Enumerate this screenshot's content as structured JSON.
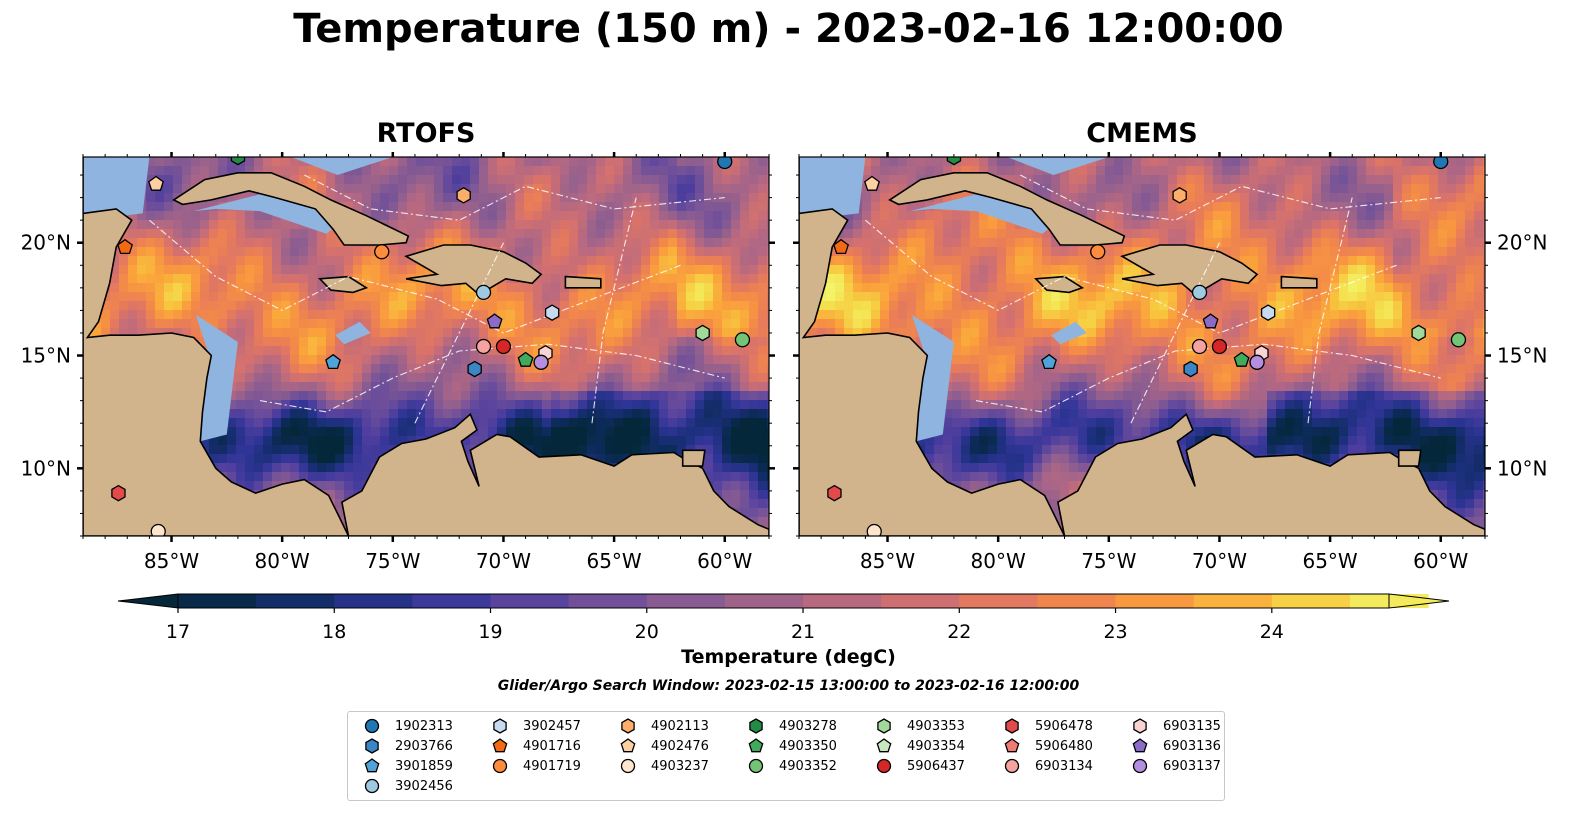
{
  "title": "Temperature (150 m) - 2023-02-16 12:00:00",
  "panels": [
    {
      "title": "RTOFS"
    },
    {
      "title": "CMEMS"
    }
  ],
  "axes": {
    "lon_ticks": [
      "85°W",
      "80°W",
      "75°W",
      "70°W",
      "65°W",
      "60°W"
    ],
    "lon_values": [
      -85,
      -80,
      -75,
      -70,
      -65,
      -60
    ],
    "lat_ticks": [
      "10°N",
      "15°N",
      "20°N"
    ],
    "lat_values": [
      10,
      15,
      20
    ],
    "lon_range": [
      -89,
      -58
    ],
    "lat_range": [
      7,
      23.8
    ]
  },
  "colorbar": {
    "label": "Temperature (degC)",
    "min": 17,
    "max": 24.75,
    "step": 0.5,
    "ticks": [
      "17",
      "18",
      "19",
      "20",
      "21",
      "22",
      "23",
      "24"
    ],
    "tick_values": [
      17,
      18,
      19,
      20,
      21,
      22,
      23,
      24
    ],
    "extend": "both",
    "colormap": "thermal"
  },
  "search_window": "Glider/Argo Search Window: 2023-02-15 13:00:00 to 2023-02-16 12:00:00",
  "colors": {
    "land": "#d2b48c",
    "shallow_water": "#90b4e0",
    "deep_cold": "#04283a",
    "warm": "#f4f46a"
  },
  "legend": [
    {
      "id": "1902313",
      "marker": "circle",
      "color": "#1f77b4"
    },
    {
      "id": "2903766",
      "marker": "hexagon",
      "color": "#3d86c6"
    },
    {
      "id": "3901859",
      "marker": "pentagon",
      "color": "#4fa3d9"
    },
    {
      "id": "3902456",
      "marker": "circle",
      "color": "#9ecae1"
    },
    {
      "id": "3902457",
      "marker": "hexagon",
      "color": "#c6dbef"
    },
    {
      "id": "4901716",
      "marker": "pentagon",
      "color": "#f16913"
    },
    {
      "id": "4901719",
      "marker": "circle",
      "color": "#fd8d3c"
    },
    {
      "id": "4902113",
      "marker": "hexagon",
      "color": "#fdae6b"
    },
    {
      "id": "4902476",
      "marker": "pentagon",
      "color": "#fdd0a2"
    },
    {
      "id": "4903237",
      "marker": "circle",
      "color": "#fee6ce"
    },
    {
      "id": "4903278",
      "marker": "hexagon",
      "color": "#238b45"
    },
    {
      "id": "4903350",
      "marker": "pentagon",
      "color": "#41ab5d"
    },
    {
      "id": "4903352",
      "marker": "circle",
      "color": "#74c476"
    },
    {
      "id": "4903353",
      "marker": "hexagon",
      "color": "#a1d99b"
    },
    {
      "id": "4903354",
      "marker": "pentagon",
      "color": "#c7e9c0"
    },
    {
      "id": "5906437",
      "marker": "circle",
      "color": "#d62728"
    },
    {
      "id": "5906478",
      "marker": "hexagon",
      "color": "#e34a4a"
    },
    {
      "id": "5906480",
      "marker": "pentagon",
      "color": "#f07b72"
    },
    {
      "id": "6903134",
      "marker": "circle",
      "color": "#f4a3a0"
    },
    {
      "id": "6903135",
      "marker": "hexagon",
      "color": "#f9d2d2"
    },
    {
      "id": "6903136",
      "marker": "pentagon",
      "color": "#8c6bc8"
    },
    {
      "id": "6903137",
      "marker": "circle",
      "color": "#b48ee0"
    }
  ],
  "floats": [
    {
      "id": "1902313",
      "lon": -60,
      "lat": 23.6
    },
    {
      "id": "2903766",
      "lon": -71.3,
      "lat": 14.4
    },
    {
      "id": "3901859",
      "lon": -77.7,
      "lat": 14.7
    },
    {
      "id": "3902456",
      "lon": -70.9,
      "lat": 17.8
    },
    {
      "id": "3902457",
      "lon": -67.8,
      "lat": 16.9
    },
    {
      "id": "4901716",
      "lon": -87.1,
      "lat": 19.8
    },
    {
      "id": "4901719",
      "lon": -75.5,
      "lat": 19.6
    },
    {
      "id": "4902113",
      "lon": -71.8,
      "lat": 22.1
    },
    {
      "id": "4902476",
      "lon": -85.7,
      "lat": 22.6
    },
    {
      "id": "4903237",
      "lon": -85.6,
      "lat": 7.2
    },
    {
      "id": "4903278",
      "lon": -82.0,
      "lat": 23.8
    },
    {
      "id": "4903350",
      "lon": -69.0,
      "lat": 14.8
    },
    {
      "id": "4903352",
      "lon": -59.2,
      "lat": 15.7
    },
    {
      "id": "4903353",
      "lon": -61,
      "lat": 16
    },
    {
      "id": "5906437",
      "lon": -70.0,
      "lat": 15.4
    },
    {
      "id": "5906478",
      "lon": -87.4,
      "lat": 8.9
    },
    {
      "id": "6903134",
      "lon": -70.9,
      "lat": 15.4
    },
    {
      "id": "6903135",
      "lon": -68.1,
      "lat": 15.1
    },
    {
      "id": "6903136",
      "lon": -70.4,
      "lat": 16.5
    },
    {
      "id": "6903137",
      "lon": -68.3,
      "lat": 14.7
    }
  ]
}
